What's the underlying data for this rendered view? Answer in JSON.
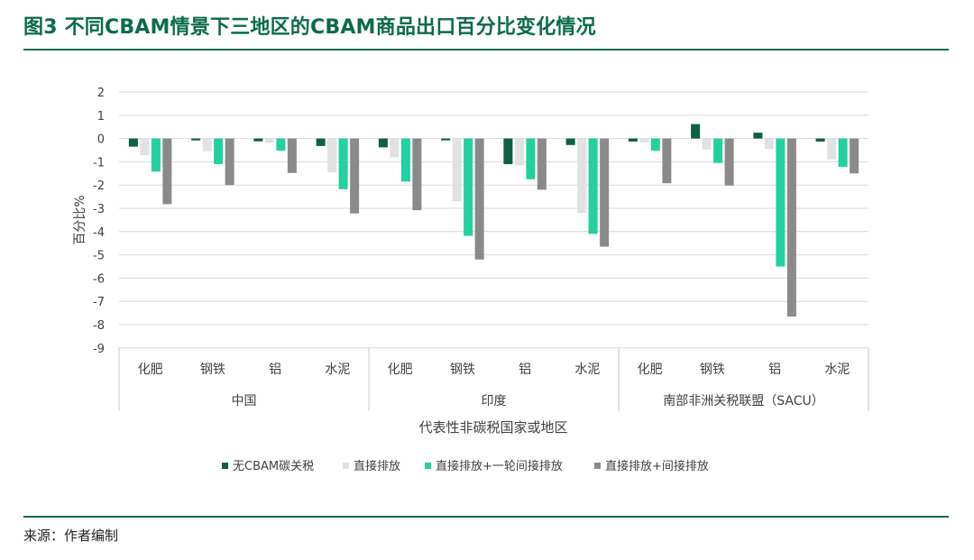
{
  "title": "图3 不同CBAM情景下三地区的CBAM商品出口百分比变化情况",
  "source": "来源：作者编制",
  "chart_data": {
    "type": "bar",
    "ylabel": "百分比%",
    "xlabel": "代表性非碳税国家或地区",
    "ylim": [
      -9,
      2
    ],
    "yticks": [
      2,
      1,
      0,
      -1,
      -2,
      -3,
      -4,
      -5,
      -6,
      -7,
      -8,
      -9
    ],
    "grid": true,
    "legend_position": "bottom",
    "groups": [
      {
        "name": "中国",
        "categories": [
          "化肥",
          "钢铁",
          "铝",
          "水泥"
        ]
      },
      {
        "name": "印度",
        "categories": [
          "化肥",
          "钢铁",
          "铝",
          "水泥"
        ]
      },
      {
        "name": "南部非洲关税联盟（SACU）",
        "categories": [
          "化肥",
          "钢铁",
          "铝",
          "水泥"
        ]
      }
    ],
    "series": [
      {
        "name": "无CBAM碳关税",
        "color": "#0e5f44",
        "values": [
          -0.35,
          -0.08,
          -0.12,
          -0.32,
          -0.38,
          -0.08,
          -1.1,
          -0.28,
          -0.13,
          0.62,
          0.25,
          -0.13
        ]
      },
      {
        "name": "直接排放",
        "color": "#e2e2e2",
        "values": [
          -0.72,
          -0.55,
          -0.18,
          -1.45,
          -0.8,
          -2.7,
          -1.15,
          -3.2,
          -0.18,
          -0.48,
          -0.45,
          -0.9
        ]
      },
      {
        "name": "直接排放+一轮间接排放",
        "color": "#21d19f",
        "values": [
          -1.42,
          -1.1,
          -0.52,
          -2.18,
          -1.85,
          -4.18,
          -1.75,
          -4.1,
          -0.52,
          -1.05,
          -5.5,
          -1.22
        ]
      },
      {
        "name": "直接排放+间接排放",
        "color": "#8a8a8a",
        "values": [
          -2.82,
          -2.0,
          -1.48,
          -3.22,
          -3.08,
          -5.2,
          -2.2,
          -4.65,
          -1.92,
          -2.02,
          -7.65,
          -1.5
        ]
      }
    ]
  }
}
